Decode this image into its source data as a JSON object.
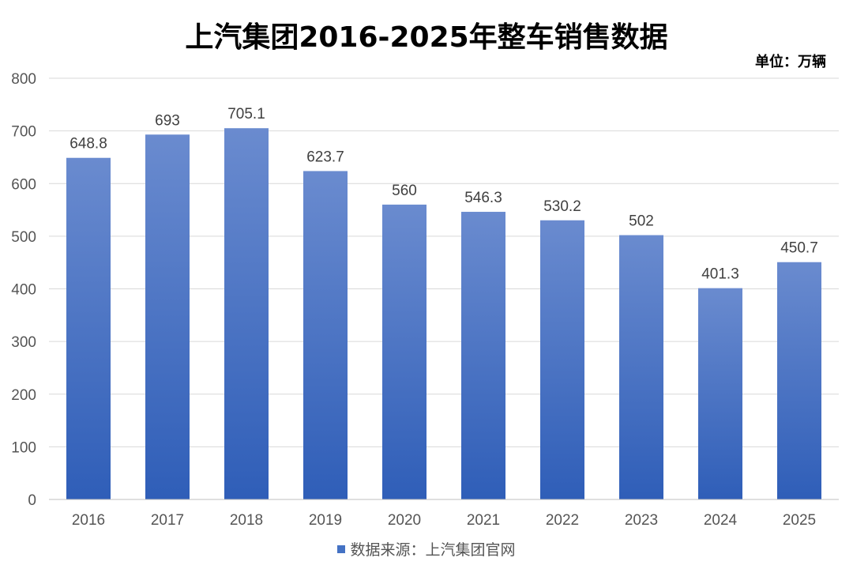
{
  "chart_data": {
    "type": "bar",
    "title": "上汽集团2016-2025年整车销售数据",
    "unit_label": "单位：万辆",
    "categories": [
      "2016",
      "2017",
      "2018",
      "2019",
      "2020",
      "2021",
      "2022",
      "2023",
      "2024",
      "2025"
    ],
    "series": [
      {
        "name": "数据来源：上汽集团官网",
        "values": [
          648.8,
          693,
          705.1,
          623.7,
          560,
          546.3,
          530.2,
          502,
          401.3,
          450.7
        ]
      }
    ],
    "ylim": [
      0,
      800
    ],
    "yticks": [
      0,
      100,
      200,
      300,
      400,
      500,
      600,
      700,
      800
    ],
    "grid": true,
    "legend_position": "bottom",
    "colors": {
      "bar_top": "#6A8BCF",
      "bar_bottom": "#2F5EB8",
      "legend": "#4472C4",
      "grid": "#D9D9D9",
      "axis": "#BFBFBF"
    }
  }
}
